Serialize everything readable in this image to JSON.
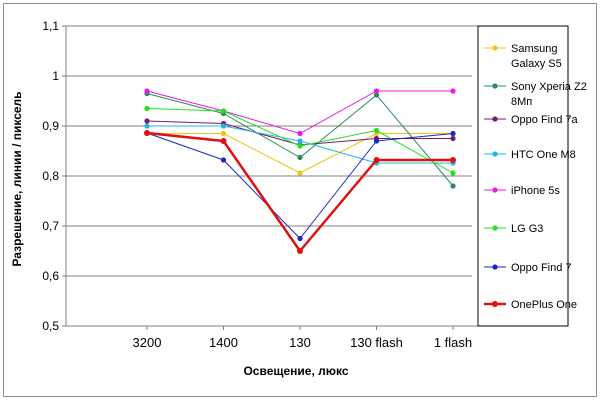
{
  "chart_data": {
    "type": "line",
    "title": "",
    "xlabel": "Освещение, люкс",
    "ylabel": "Разрешение, линии / пиксель",
    "categories": [
      "3200",
      "1400",
      "130",
      "130 flash",
      "1 flash"
    ],
    "ylim": [
      0.5,
      1.1
    ],
    "yticks": [
      "0,5",
      "0,6",
      "0,7",
      "0,8",
      "0,9",
      "1",
      "1,1"
    ],
    "ytick_values": [
      0.5,
      0.6,
      0.7,
      0.8,
      0.9,
      1.0,
      1.1
    ],
    "grid": true,
    "legend_position": "right",
    "series": [
      {
        "name": "Samsung Galaxy S5",
        "legend_lines": [
          "Samsung",
          "Galaxy S5"
        ],
        "color": "#f2c417",
        "width": 1,
        "values": [
          0.885,
          0.885,
          0.806,
          0.885,
          0.885
        ]
      },
      {
        "name": "Sony Xperia Z2 8Мп",
        "legend_lines": [
          "Sony Xperia Z2",
          "8Мп"
        ],
        "color": "#2e8b57",
        "width": 1,
        "values": [
          0.965,
          0.925,
          0.837,
          0.962,
          0.78
        ]
      },
      {
        "name": "Oppo Find 7a",
        "legend_lines": [
          "Oppo Find 7a"
        ],
        "color": "#7a1a6c",
        "width": 1,
        "values": [
          0.91,
          0.905,
          0.862,
          0.875,
          0.875
        ]
      },
      {
        "name": "HTC One M8",
        "legend_lines": [
          "HTC One M8"
        ],
        "color": "#21b8e0",
        "width": 1,
        "values": [
          0.9,
          0.9,
          0.87,
          0.826,
          0.826
        ]
      },
      {
        "name": "iPhone 5s",
        "legend_lines": [
          "iPhone 5s"
        ],
        "color": "#e81ae8",
        "width": 1,
        "values": [
          0.97,
          0.93,
          0.885,
          0.97,
          0.97
        ]
      },
      {
        "name": "LG G3",
        "legend_lines": [
          "LG G3"
        ],
        "color": "#22e022",
        "width": 1,
        "values": [
          0.935,
          0.93,
          0.86,
          0.891,
          0.806
        ]
      },
      {
        "name": "Oppo Find 7",
        "legend_lines": [
          "Oppo Find 7"
        ],
        "color": "#1a26c8",
        "width": 1,
        "values": [
          0.886,
          0.832,
          0.675,
          0.87,
          0.885
        ]
      },
      {
        "name": "OnePlus One",
        "legend_lines": [
          "OnePlus One"
        ],
        "color": "#e01010",
        "width": 2.5,
        "values": [
          0.886,
          0.87,
          0.65,
          0.832,
          0.832
        ]
      }
    ]
  }
}
